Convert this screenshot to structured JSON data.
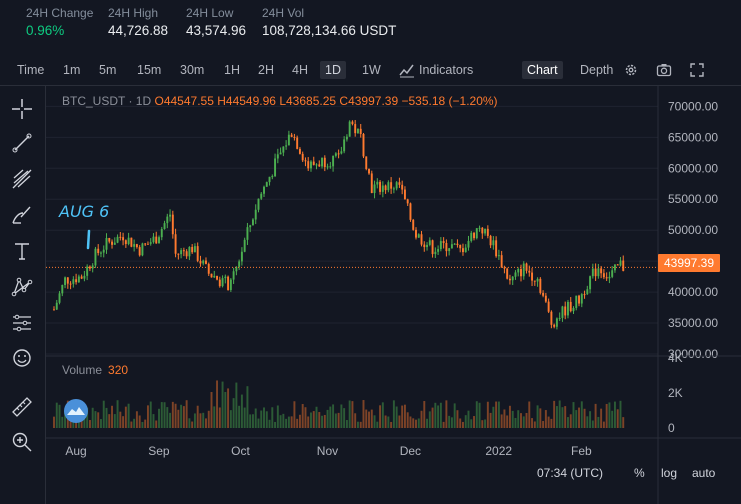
{
  "stats": [
    {
      "label": "24H Change",
      "value": "0.96%",
      "color": "#0ecb81"
    },
    {
      "label": "24H High",
      "value": "44,726.88"
    },
    {
      "label": "24H Low",
      "value": "43,574.96"
    },
    {
      "label": "24H Vol",
      "value": "108,728,134.66 USDT"
    }
  ],
  "toolbar": {
    "intervals": [
      "Time",
      "1m",
      "5m",
      "15m",
      "30m",
      "1H",
      "2H",
      "4H",
      "1D",
      "1W"
    ],
    "active_interval": "1D",
    "indicators": "Indicators",
    "chart": "Chart",
    "depth": "Depth"
  },
  "legend": {
    "symbol": "BTC_USDT · 1D",
    "open_label": "O",
    "open": "44547.55",
    "high_label": "H",
    "high": "44549.96",
    "low_label": "L",
    "low": "43685.25",
    "close_label": "C",
    "close": "43997.39",
    "change": "−535.18 (−1.20%)"
  },
  "volume_legend": {
    "label": "Volume",
    "value": "320"
  },
  "annotation": {
    "text": "AUG 6",
    "color": "#4fc3f7"
  },
  "current_price": "43997.39",
  "colors": {
    "up": "#26a69a",
    "up_candle": "#4caf50",
    "down": "#ff7a2f",
    "bg": "#131722",
    "grid": "#1f2330"
  },
  "time_display": "07:34 (UTC)",
  "scale_buttons": [
    "%",
    "log",
    "auto"
  ],
  "chart_data": {
    "type": "candlestick",
    "y_ticks": [
      "70000.00",
      "65000.00",
      "60000.00",
      "55000.00",
      "50000.00",
      "45000.00",
      "40000.00",
      "35000.00",
      "30000.00"
    ],
    "ylim": [
      30000,
      72000
    ],
    "volume_ticks": [
      "4K",
      "2K",
      "0"
    ],
    "x_ticks": [
      "Aug",
      "Sep",
      "Oct",
      "Nov",
      "Dec",
      "2022",
      "Feb"
    ],
    "close_path": [
      {
        "d": "2021-07-26",
        "c": 37200
      },
      {
        "d": "2021-07-30",
        "c": 42000
      },
      {
        "d": "2021-08-05",
        "c": 42500
      },
      {
        "d": "2021-08-06",
        "c": 43200
      },
      {
        "d": "2021-08-10",
        "c": 46000
      },
      {
        "d": "2021-08-14",
        "c": 47800
      },
      {
        "d": "2021-08-20",
        "c": 49200
      },
      {
        "d": "2021-08-26",
        "c": 46900
      },
      {
        "d": "2021-09-01",
        "c": 48800
      },
      {
        "d": "2021-09-06",
        "c": 52600
      },
      {
        "d": "2021-09-08",
        "c": 46100
      },
      {
        "d": "2021-09-14",
        "c": 47100
      },
      {
        "d": "2021-09-20",
        "c": 43000
      },
      {
        "d": "2021-09-28",
        "c": 41000
      },
      {
        "d": "2021-10-03",
        "c": 48200
      },
      {
        "d": "2021-10-08",
        "c": 55000
      },
      {
        "d": "2021-10-15",
        "c": 61500
      },
      {
        "d": "2021-10-20",
        "c": 65900
      },
      {
        "d": "2021-10-26",
        "c": 60300
      },
      {
        "d": "2021-11-01",
        "c": 61300
      },
      {
        "d": "2021-11-06",
        "c": 61500
      },
      {
        "d": "2021-11-10",
        "c": 67500
      },
      {
        "d": "2021-11-14",
        "c": 65000
      },
      {
        "d": "2021-11-18",
        "c": 56900
      },
      {
        "d": "2021-11-24",
        "c": 57100
      },
      {
        "d": "2021-11-28",
        "c": 57200
      },
      {
        "d": "2021-12-04",
        "c": 49300
      },
      {
        "d": "2021-12-10",
        "c": 47100
      },
      {
        "d": "2021-12-16",
        "c": 47600
      },
      {
        "d": "2021-12-20",
        "c": 46700
      },
      {
        "d": "2021-12-27",
        "c": 50700
      },
      {
        "d": "2022-01-01",
        "c": 47700
      },
      {
        "d": "2022-01-07",
        "c": 41600
      },
      {
        "d": "2022-01-12",
        "c": 43900
      },
      {
        "d": "2022-01-17",
        "c": 42200
      },
      {
        "d": "2022-01-22",
        "c": 35000
      },
      {
        "d": "2022-01-27",
        "c": 37200
      },
      {
        "d": "2022-02-01",
        "c": 38700
      },
      {
        "d": "2022-02-04",
        "c": 41500
      },
      {
        "d": "2022-02-08",
        "c": 44100
      },
      {
        "d": "2022-02-12",
        "c": 42300
      },
      {
        "d": "2022-02-16",
        "c": 44500
      },
      {
        "d": "2022-02-17",
        "c": 43997
      }
    ]
  }
}
